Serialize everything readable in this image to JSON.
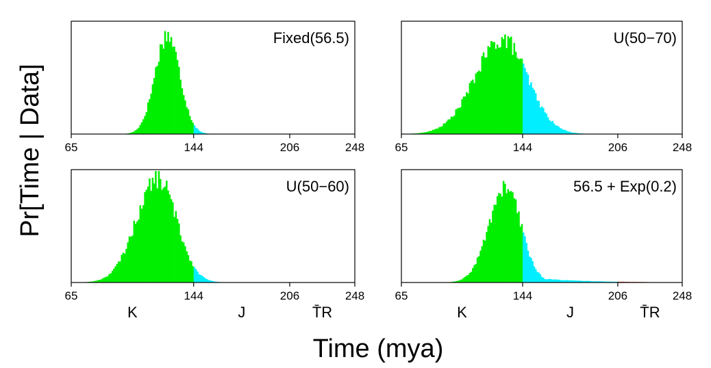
{
  "figure": {
    "xlabel": "Time (mya)",
    "ylabel": "Pr[Time | Data]"
  },
  "colors": {
    "cretaceous": "#00ee00",
    "jurassic": "#00eeff",
    "triassic": "#cc2200",
    "frame": "#000000"
  },
  "chart_data": [
    {
      "type": "bar",
      "label": "Fixed(56.5)",
      "xlim": [
        65,
        248
      ],
      "xticks": [
        65,
        144,
        206,
        248
      ],
      "bin_width": 1,
      "mode": 127,
      "spread_left": 8,
      "spread_right": 8,
      "tail": 0,
      "peak": 0.88,
      "show_periods": false
    },
    {
      "type": "bar",
      "label": "U(50−70)",
      "xlim": [
        65,
        248
      ],
      "xticks": [
        65,
        144,
        206,
        248
      ],
      "bin_width": 1,
      "mode": 131,
      "spread_left": 18,
      "spread_right": 16,
      "tail": 0,
      "peak": 0.84,
      "show_periods": false
    },
    {
      "type": "bar",
      "label": "U(50−60)",
      "xlim": [
        65,
        248
      ],
      "xticks": [
        65,
        144,
        206,
        248
      ],
      "bin_width": 1,
      "mode": 121,
      "spread_left": 14,
      "spread_right": 12,
      "tail": 0,
      "peak": 0.92,
      "show_periods": true,
      "periods": [
        "K",
        "J",
        "T̄R"
      ]
    },
    {
      "type": "bar",
      "label": "56.5 + Exp(0.2)",
      "xlim": [
        65,
        248
      ],
      "xticks": [
        65,
        144,
        206,
        248
      ],
      "bin_width": 1,
      "mode": 133,
      "spread_left": 11,
      "spread_right": 10,
      "tail": 0.09,
      "peak": 0.84,
      "show_periods": true,
      "periods": [
        "K",
        "J",
        "T̄R"
      ]
    }
  ]
}
